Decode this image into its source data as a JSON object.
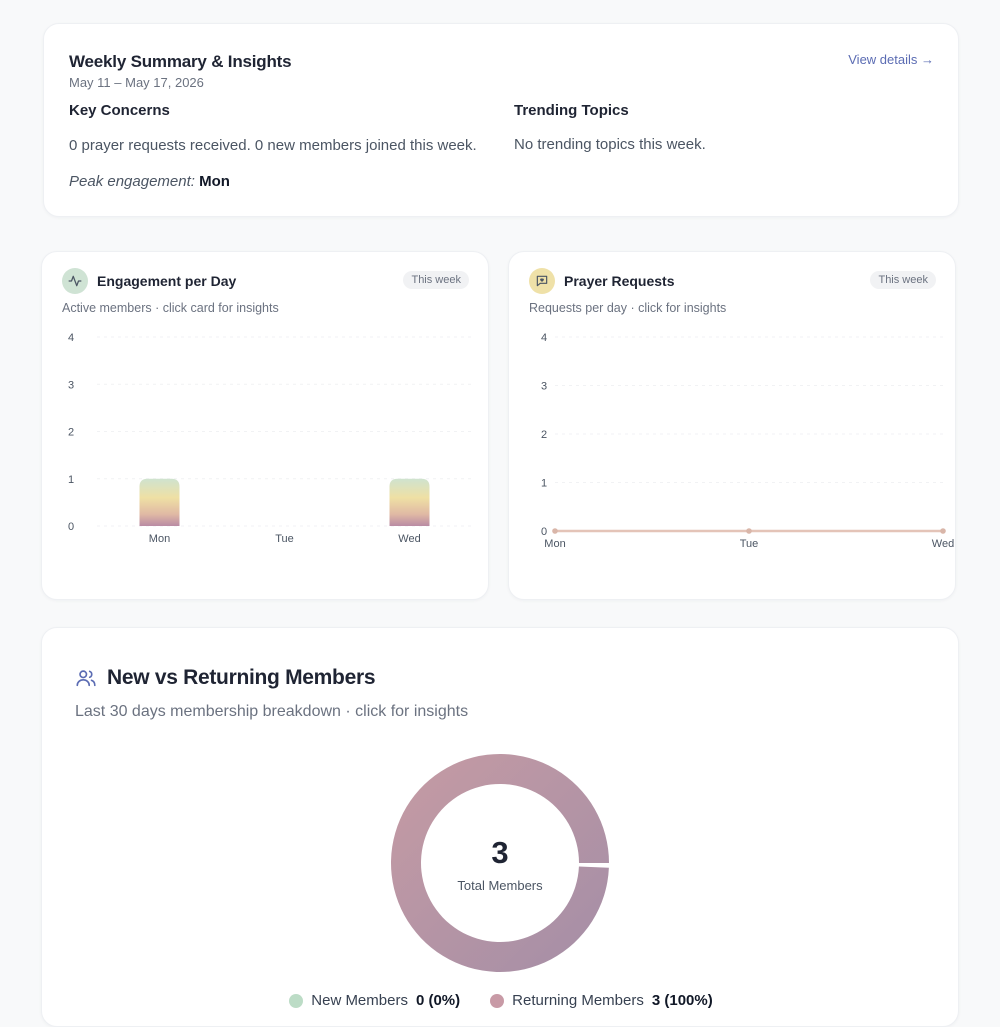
{
  "summary": {
    "title": "Weekly Summary & Insights",
    "date_range": "May 11 – May 17, 2026",
    "view_details": "View details →",
    "key_concerns_heading": "Key Concerns",
    "key_concerns_text": "0 prayer requests received. 0 new members joined this week.",
    "trending_heading": "Trending Topics",
    "trending_text": "No trending topics this week.",
    "peak_label": "Peak engagement:",
    "peak_value": "Mon"
  },
  "engagement": {
    "title": "Engagement per Day",
    "badge": "This week",
    "subtitle": "Active members · click card for insights",
    "icon": "activity-icon",
    "icon_bg": "#cfe3d4"
  },
  "prayer": {
    "title": "Prayer Requests",
    "badge": "This week",
    "subtitle": "Requests per day · click for insights",
    "icon": "message-heart-icon",
    "icon_bg": "#efe1a8"
  },
  "members": {
    "title": "New vs Returning Members",
    "subtitle": "Last 30 days membership breakdown · click for insights",
    "total_value": "3",
    "total_label": "Total Members",
    "legend_new_label": "New Members",
    "legend_new_value": "0 (0%)",
    "legend_returning_label": "Returning Members",
    "legend_returning_value": "3 (100%)",
    "color_new": "#bcdcc6",
    "color_returning": "#c89aa6"
  },
  "chart_data": [
    {
      "type": "bar",
      "title": "Engagement per Day",
      "categories": [
        "Mon",
        "Tue",
        "Wed"
      ],
      "values": [
        1,
        0,
        1
      ],
      "ylim": [
        0,
        4
      ],
      "yticks": [
        "0",
        "1",
        "2",
        "3",
        "4"
      ],
      "grid": true
    },
    {
      "type": "line",
      "title": "Prayer Requests",
      "categories": [
        "Mon",
        "Tue",
        "Wed"
      ],
      "values": [
        0,
        0,
        0
      ],
      "ylim": [
        0,
        4
      ],
      "yticks": [
        "0",
        "1",
        "2",
        "3",
        "4"
      ],
      "grid": true,
      "color": "#e4c4b8"
    },
    {
      "type": "pie",
      "title": "New vs Returning Members",
      "categories": [
        "New Members",
        "Returning Members"
      ],
      "values": [
        0,
        3
      ]
    }
  ]
}
